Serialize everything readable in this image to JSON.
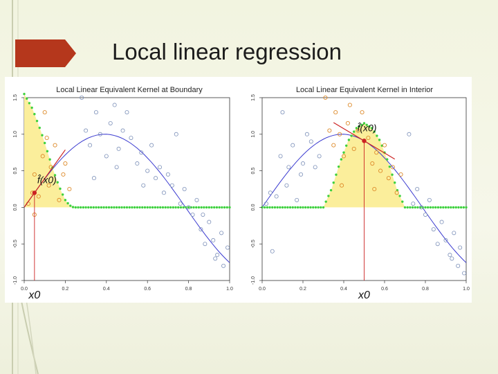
{
  "slide": {
    "title": "Local linear regression"
  },
  "colors": {
    "accent_red": "#b5371c",
    "kernel_fill": "#fbee9b",
    "kernel_points": "#3ed13e",
    "fit_line": "#3a3ad0",
    "true_curve": "#7a7ad0",
    "local_line": "#cc2222",
    "points_blue": "#7b8fb8",
    "points_orange": "#dd8a2a"
  },
  "chart_data": [
    {
      "type": "scatter",
      "title": "Local Linear Equivalent Kernel at Boundary",
      "xlim": [
        0,
        1
      ],
      "ylim": [
        -1,
        1.5
      ],
      "xticks": [
        "0.0",
        "0.2",
        "0.4",
        "0.6",
        "0.8",
        "1.0"
      ],
      "yticks": [
        "-1.0",
        "-0.5",
        "0.0",
        "0.5",
        "1.0",
        "1.5"
      ],
      "grid": false,
      "target_x": 0.05,
      "target_label": "x0",
      "fit_label": "f̂(x0)",
      "kernel_support": [
        0,
        0.24
      ],
      "points_inside": {
        "x": [
          0.02,
          0.04,
          0.05,
          0.07,
          0.09,
          0.1,
          0.12,
          0.13,
          0.15,
          0.17,
          0.19,
          0.2,
          0.22,
          0.05,
          0.11
        ],
        "y": [
          0.05,
          0.2,
          0.45,
          0.15,
          0.7,
          1.3,
          0.3,
          0.55,
          0.85,
          0.1,
          0.45,
          0.6,
          0.25,
          -0.1,
          0.95
        ]
      },
      "points_outside": {
        "x": [
          0.28,
          0.3,
          0.32,
          0.35,
          0.37,
          0.4,
          0.42,
          0.44,
          0.46,
          0.48,
          0.5,
          0.52,
          0.55,
          0.57,
          0.6,
          0.62,
          0.64,
          0.66,
          0.68,
          0.7,
          0.72,
          0.74,
          0.76,
          0.78,
          0.8,
          0.82,
          0.84,
          0.86,
          0.88,
          0.9,
          0.92,
          0.94,
          0.96,
          0.97,
          0.99,
          0.34,
          0.45,
          0.58,
          0.87,
          0.93
        ],
        "y": [
          1.5,
          1.05,
          0.85,
          1.3,
          1.0,
          0.7,
          1.15,
          1.4,
          0.8,
          1.05,
          1.3,
          0.95,
          0.6,
          0.75,
          0.5,
          0.85,
          0.4,
          0.55,
          0.2,
          0.45,
          0.3,
          1.0,
          0.05,
          0.25,
          0.0,
          -0.1,
          0.1,
          -0.3,
          -0.5,
          -0.2,
          -0.45,
          -0.65,
          -0.35,
          -0.8,
          -0.55,
          0.4,
          0.55,
          0.3,
          -0.1,
          -0.7
        ]
      },
      "true_function": "sin(4x)",
      "kernel_weights": {
        "x": [
          0.0,
          0.02,
          0.04,
          0.06,
          0.08,
          0.1,
          0.12,
          0.14,
          0.16,
          0.18,
          0.2,
          0.22,
          0.24
        ],
        "w": [
          1.55,
          1.45,
          1.35,
          1.2,
          1.05,
          0.88,
          0.7,
          0.52,
          0.36,
          0.22,
          0.1,
          0.03,
          0.0
        ]
      }
    },
    {
      "type": "scatter",
      "title": "Local Linear Equivalent Kernel in Interior",
      "xlim": [
        0,
        1
      ],
      "ylim": [
        -1,
        1.5
      ],
      "xticks": [
        "0.0",
        "0.2",
        "0.4",
        "0.6",
        "0.8",
        "1.0"
      ],
      "yticks": [
        "-1.0",
        "-0.5",
        "0.0",
        "0.5",
        "1.0",
        "1.5"
      ],
      "grid": false,
      "target_x": 0.5,
      "target_label": "x0",
      "fit_label": "f̂(x0)",
      "kernel_support": [
        0.3,
        0.7
      ],
      "points_inside": {
        "x": [
          0.31,
          0.33,
          0.35,
          0.36,
          0.38,
          0.4,
          0.42,
          0.43,
          0.45,
          0.47,
          0.49,
          0.52,
          0.54,
          0.56,
          0.58,
          0.6,
          0.62,
          0.64,
          0.66,
          0.68,
          0.39,
          0.55
        ],
        "y": [
          1.5,
          1.05,
          0.85,
          1.3,
          1.0,
          0.7,
          1.15,
          1.4,
          0.8,
          1.05,
          1.3,
          0.95,
          0.6,
          0.75,
          0.5,
          0.85,
          0.4,
          0.55,
          0.2,
          0.45,
          0.3,
          0.25
        ]
      },
      "points_outside": {
        "x": [
          0.02,
          0.04,
          0.05,
          0.07,
          0.09,
          0.1,
          0.12,
          0.13,
          0.15,
          0.17,
          0.19,
          0.2,
          0.22,
          0.24,
          0.26,
          0.28,
          0.72,
          0.74,
          0.76,
          0.78,
          0.8,
          0.82,
          0.84,
          0.86,
          0.88,
          0.9,
          0.92,
          0.94,
          0.96,
          0.97,
          0.99,
          0.93
        ],
        "y": [
          0.05,
          0.2,
          -0.6,
          0.15,
          0.7,
          1.3,
          0.3,
          0.55,
          0.85,
          0.1,
          0.45,
          0.6,
          1.0,
          0.9,
          0.55,
          0.7,
          1.0,
          0.05,
          0.25,
          0.0,
          -0.1,
          0.1,
          -0.3,
          -0.5,
          -0.2,
          -0.45,
          -0.65,
          -0.35,
          -0.8,
          -0.55,
          -0.9,
          -0.7
        ]
      },
      "true_function": "sin(4x)",
      "kernel_weights": {
        "x": [
          0.3,
          0.34,
          0.38,
          0.42,
          0.46,
          0.5,
          0.54,
          0.58,
          0.62,
          0.66,
          0.7
        ],
        "w": [
          0.0,
          0.25,
          0.6,
          0.9,
          1.08,
          1.15,
          1.08,
          0.9,
          0.6,
          0.25,
          0.0
        ]
      }
    }
  ]
}
